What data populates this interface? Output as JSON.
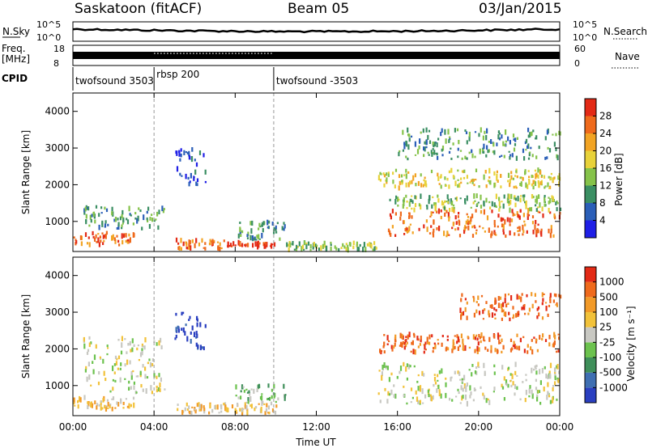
{
  "header": {
    "title": "Saskatoon (fitACF)",
    "beam": "Beam 05",
    "date": "03/Jan/2015"
  },
  "strip_labels": {
    "nsky": "N.Sky",
    "nsearch": "N.Search",
    "freq_line1": "Freq.",
    "freq_line2": "[MHz]",
    "nave": "Nave",
    "cpid": "CPID",
    "nsky_ticks": [
      "10^5",
      "10^0"
    ],
    "nsearch_ticks": [
      "10^5",
      "10^0"
    ],
    "freq_ticks": [
      "18",
      "8"
    ],
    "nave_ticks": [
      "60",
      "0"
    ]
  },
  "cpid_segments": [
    {
      "label": "twofsound 3503",
      "start": 0.0,
      "end": 4.0
    },
    {
      "label": "rbsp 200",
      "start": 4.0,
      "end": 9.9
    },
    {
      "label": "twofsound -3503",
      "start": 9.9,
      "end": 24.0
    }
  ],
  "time_axis": {
    "label": "Time UT",
    "ticks": [
      "00:00",
      "04:00",
      "08:00",
      "12:00",
      "16:00",
      "20:00",
      "00:00"
    ]
  },
  "colors": {
    "power": [
      "#1f1fe6",
      "#2b5fb8",
      "#3b8f63",
      "#86c34a",
      "#e8d23a",
      "#f2a424",
      "#ef6a1c",
      "#e32a16"
    ],
    "velocity": [
      "#2a3fc0",
      "#3f6fb2",
      "#3f8f5a",
      "#6cc24e",
      "#c8c8c2",
      "#f2c23a",
      "#f29a28",
      "#ef6a1c",
      "#e32a16"
    ]
  },
  "chart_data": [
    {
      "type": "heatmap",
      "panel": "power",
      "ylabel": "Slant Range [km]",
      "ylim": [
        180,
        4500
      ],
      "yticks": [
        1000,
        2000,
        3000,
        4000
      ],
      "xlabel": "",
      "xlim": [
        0,
        24
      ],
      "colorbar": {
        "label": "Power [dB]",
        "ticks": [
          "28",
          "24",
          "20",
          "16",
          "12",
          "8",
          "4"
        ]
      },
      "features": [
        {
          "t0": 0.0,
          "t1": 3.0,
          "r0": 350,
          "r1": 700,
          "level": 6
        },
        {
          "t0": 0.5,
          "t1": 4.5,
          "r0": 800,
          "r1": 1400,
          "level": 2
        },
        {
          "t0": 5.0,
          "t1": 7.5,
          "r0": 250,
          "r1": 500,
          "level": 6
        },
        {
          "t0": 7.5,
          "t1": 10.0,
          "r0": 300,
          "r1": 420,
          "level": 7
        },
        {
          "t0": 8.0,
          "t1": 10.5,
          "r0": 500,
          "r1": 1000,
          "level": 2
        },
        {
          "t0": 10.5,
          "t1": 15.0,
          "r0": 220,
          "r1": 420,
          "level": 3
        },
        {
          "t0": 15.5,
          "t1": 24.0,
          "r0": 600,
          "r1": 1300,
          "level": 6
        },
        {
          "t0": 15.5,
          "t1": 24.0,
          "r0": 1300,
          "r1": 1700,
          "level": 3
        },
        {
          "t0": 15.0,
          "t1": 24.0,
          "r0": 1900,
          "r1": 2400,
          "level": 4
        },
        {
          "t0": 16.0,
          "t1": 24.0,
          "r0": 2700,
          "r1": 3500,
          "level": 2
        },
        {
          "t0": 5.0,
          "t1": 6.5,
          "r0": 2000,
          "r1": 3000,
          "level": 1
        }
      ]
    },
    {
      "type": "heatmap",
      "panel": "velocity",
      "ylabel": "Slant Range [km]",
      "ylim": [
        180,
        4500
      ],
      "yticks": [
        1000,
        2000,
        3000,
        4000
      ],
      "xlabel": "Time UT",
      "xlim": [
        0,
        24
      ],
      "colorbar": {
        "label": "Velocity [m s⁻¹]",
        "ticks": [
          "1000",
          "500",
          "100",
          "25",
          "-25",
          "-100",
          "-500",
          "-1000"
        ]
      },
      "features": [
        {
          "t0": 0.0,
          "t1": 3.0,
          "r0": 350,
          "r1": 700,
          "level": 5
        },
        {
          "t0": 0.5,
          "t1": 4.5,
          "r0": 800,
          "r1": 2300,
          "level": 4
        },
        {
          "t0": 5.0,
          "t1": 6.5,
          "r0": 2000,
          "r1": 3000,
          "level": 0
        },
        {
          "t0": 5.0,
          "t1": 10.0,
          "r0": 250,
          "r1": 500,
          "level": 5
        },
        {
          "t0": 8.0,
          "t1": 10.5,
          "r0": 500,
          "r1": 1000,
          "level": 3
        },
        {
          "t0": 15.0,
          "t1": 24.0,
          "r0": 500,
          "r1": 1600,
          "level": 4
        },
        {
          "t0": 15.0,
          "t1": 24.0,
          "r0": 1900,
          "r1": 2400,
          "level": 7
        },
        {
          "t0": 19.0,
          "t1": 24.0,
          "r0": 2800,
          "r1": 3500,
          "level": 7
        }
      ]
    }
  ]
}
